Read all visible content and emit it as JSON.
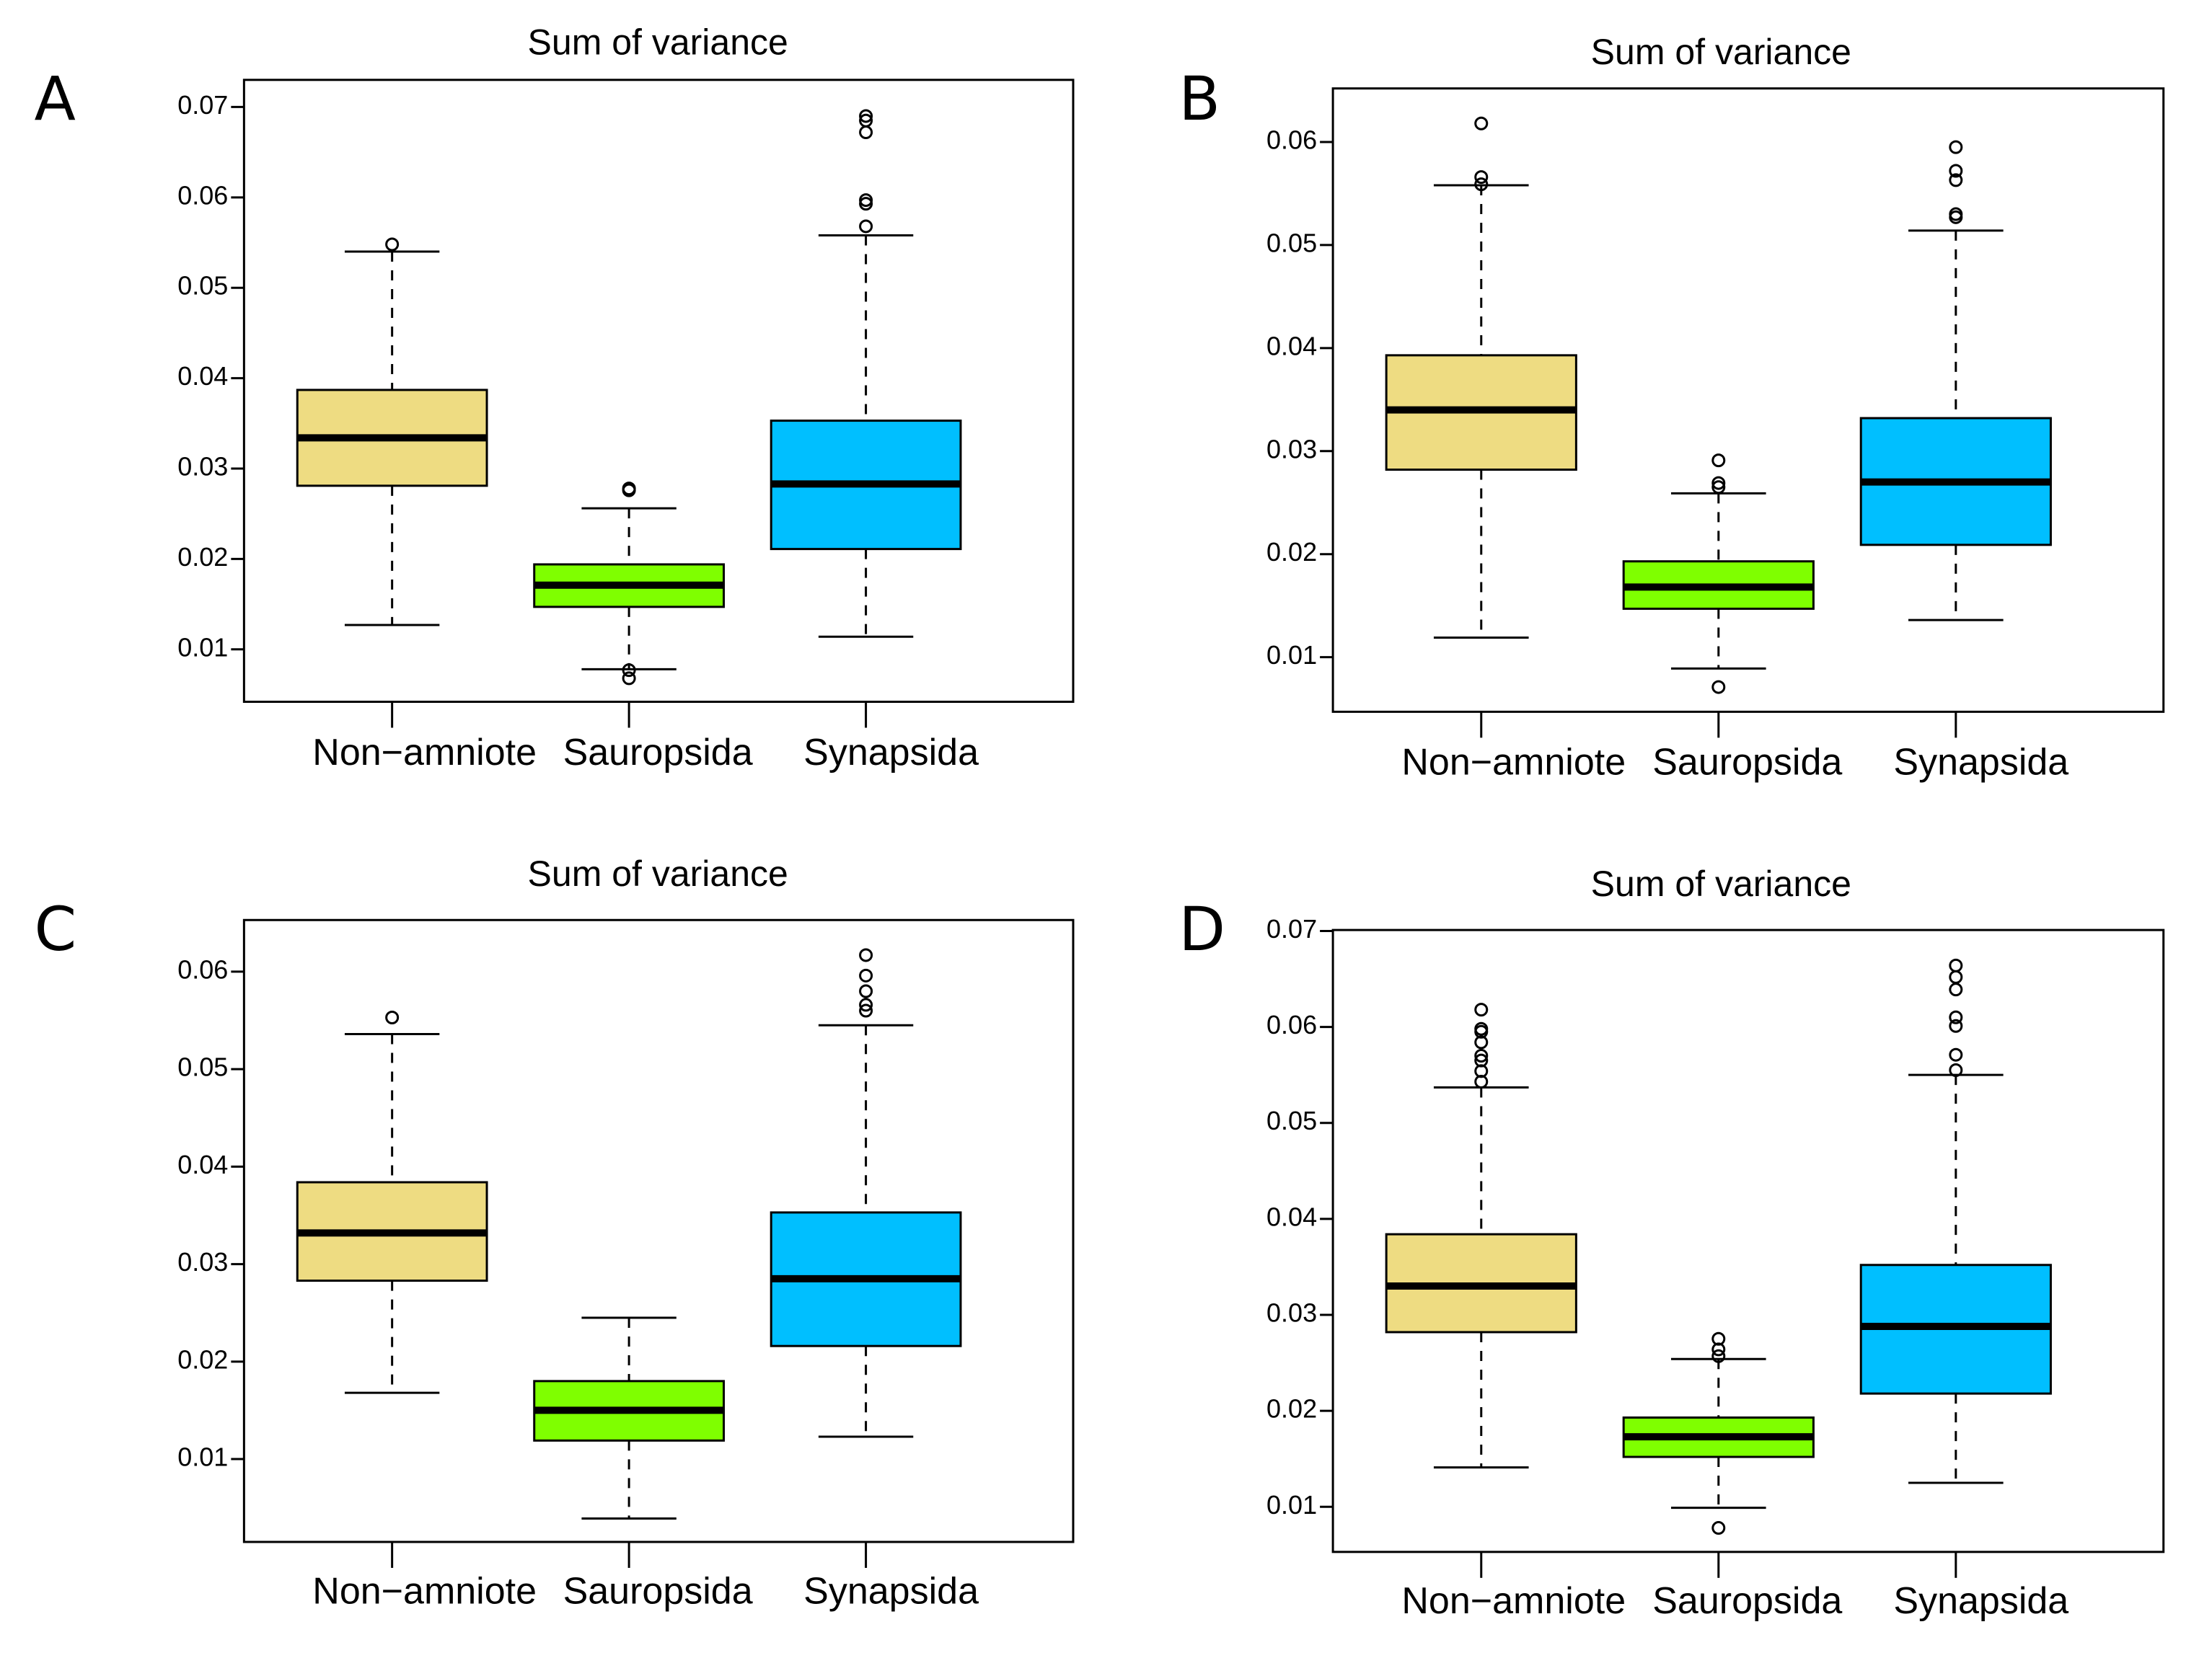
{
  "figure": {
    "categories": [
      "Non−amniote",
      "Sauropsida",
      "Synapsida"
    ],
    "colors": {
      "Non-amniote": "#EEDC82",
      "Sauropsida": "#7FFF00",
      "Synapsida": "#00BFFF"
    }
  },
  "chart_data": [
    {
      "panel": "A",
      "type": "boxplot",
      "title": "Sum of variance",
      "xlabel": "",
      "ylabel": "",
      "ylim": [
        0.0042,
        0.073
      ],
      "yticks": [
        0.01,
        0.02,
        0.03,
        0.04,
        0.05,
        0.06,
        0.07
      ],
      "ytick_labels": [
        "0.01",
        "0.02",
        "0.03",
        "0.04",
        "0.05",
        "0.06",
        "0.07"
      ],
      "categories": [
        "Non−amniote",
        "Sauropsida",
        "Synapsida"
      ],
      "boxes": [
        {
          "name": "Non-amniote",
          "whisker_low": 0.0127,
          "q1": 0.0281,
          "median": 0.0334,
          "q3": 0.0387,
          "whisker_high": 0.054,
          "outliers": [
            0.0548
          ]
        },
        {
          "name": "Sauropsida",
          "whisker_low": 0.0078,
          "q1": 0.0147,
          "median": 0.0171,
          "q3": 0.0194,
          "whisker_high": 0.0256,
          "outliers": [
            0.0278,
            0.0276,
            0.0077,
            0.0068
          ]
        },
        {
          "name": "Synapsida",
          "whisker_low": 0.0114,
          "q1": 0.0211,
          "median": 0.0283,
          "q3": 0.0353,
          "whisker_high": 0.0558,
          "outliers": [
            0.069,
            0.0685,
            0.0672,
            0.0597,
            0.0593,
            0.0568
          ]
        }
      ]
    },
    {
      "panel": "B",
      "type": "boxplot",
      "title": "Sum of variance",
      "xlabel": "",
      "ylabel": "",
      "ylim": [
        0.0047,
        0.0652
      ],
      "yticks": [
        0.01,
        0.02,
        0.03,
        0.04,
        0.05,
        0.06
      ],
      "ytick_labels": [
        "0.01",
        "0.02",
        "0.03",
        "0.04",
        "0.05",
        "0.06"
      ],
      "categories": [
        "Non−amniote",
        "Sauropsida",
        "Synapsida"
      ],
      "boxes": [
        {
          "name": "Non-amniote",
          "whisker_low": 0.0119,
          "q1": 0.0282,
          "median": 0.034,
          "q3": 0.0393,
          "whisker_high": 0.0558,
          "outliers": [
            0.0618,
            0.0566,
            0.0559
          ]
        },
        {
          "name": "Sauropsida",
          "whisker_low": 0.0089,
          "q1": 0.0147,
          "median": 0.0168,
          "q3": 0.0193,
          "whisker_high": 0.0259,
          "outliers": [
            0.0291,
            0.0269,
            0.0265,
            0.0071
          ]
        },
        {
          "name": "Synapsida",
          "whisker_low": 0.0136,
          "q1": 0.0209,
          "median": 0.027,
          "q3": 0.0332,
          "whisker_high": 0.0514,
          "outliers": [
            0.0595,
            0.0572,
            0.0563,
            0.053,
            0.0527
          ]
        }
      ]
    },
    {
      "panel": "C",
      "type": "boxplot",
      "title": "Sum of variance",
      "xlabel": "",
      "ylabel": "",
      "ylim": [
        0.0015,
        0.0653
      ],
      "yticks": [
        0.01,
        0.02,
        0.03,
        0.04,
        0.05,
        0.06
      ],
      "ytick_labels": [
        "0.01",
        "0.02",
        "0.03",
        "0.04",
        "0.05",
        "0.06"
      ],
      "categories": [
        "Non−amniote",
        "Sauropsida",
        "Synapsida"
      ],
      "boxes": [
        {
          "name": "Non-amniote",
          "whisker_low": 0.0168,
          "q1": 0.0283,
          "median": 0.0332,
          "q3": 0.0384,
          "whisker_high": 0.0536,
          "outliers": [
            0.0553
          ]
        },
        {
          "name": "Sauropsida",
          "whisker_low": 0.0039,
          "q1": 0.0119,
          "median": 0.015,
          "q3": 0.018,
          "whisker_high": 0.0245,
          "outliers": []
        },
        {
          "name": "Synapsida",
          "whisker_low": 0.0123,
          "q1": 0.0216,
          "median": 0.0285,
          "q3": 0.0353,
          "whisker_high": 0.0545,
          "outliers": [
            0.0617,
            0.0596,
            0.058,
            0.0566,
            0.056
          ]
        }
      ]
    },
    {
      "panel": "D",
      "type": "boxplot",
      "title": "Sum of variance",
      "xlabel": "",
      "ylabel": "",
      "ylim": [
        0.0053,
        0.0701
      ],
      "yticks": [
        0.01,
        0.02,
        0.03,
        0.04,
        0.05,
        0.06,
        0.07
      ],
      "ytick_labels": [
        "0.01",
        "0.02",
        "0.03",
        "0.04",
        "0.05",
        "0.06",
        "0.07"
      ],
      "categories": [
        "Non−amniote",
        "Sauropsida",
        "Synapsida"
      ],
      "boxes": [
        {
          "name": "Non-amniote",
          "whisker_low": 0.0141,
          "q1": 0.0282,
          "median": 0.033,
          "q3": 0.0384,
          "whisker_high": 0.0537,
          "outliers": [
            0.0618,
            0.0598,
            0.0595,
            0.0584,
            0.057,
            0.0565,
            0.0554,
            0.0543
          ]
        },
        {
          "name": "Sauropsida",
          "whisker_low": 0.0099,
          "q1": 0.0152,
          "median": 0.0173,
          "q3": 0.0193,
          "whisker_high": 0.0254,
          "outliers": [
            0.0275,
            0.0264,
            0.0257,
            0.0078
          ]
        },
        {
          "name": "Synapsida",
          "whisker_low": 0.0125,
          "q1": 0.0218,
          "median": 0.0288,
          "q3": 0.0352,
          "whisker_high": 0.055,
          "outliers": [
            0.0664,
            0.0652,
            0.0639,
            0.061,
            0.0601,
            0.0571,
            0.0555
          ]
        }
      ]
    }
  ]
}
